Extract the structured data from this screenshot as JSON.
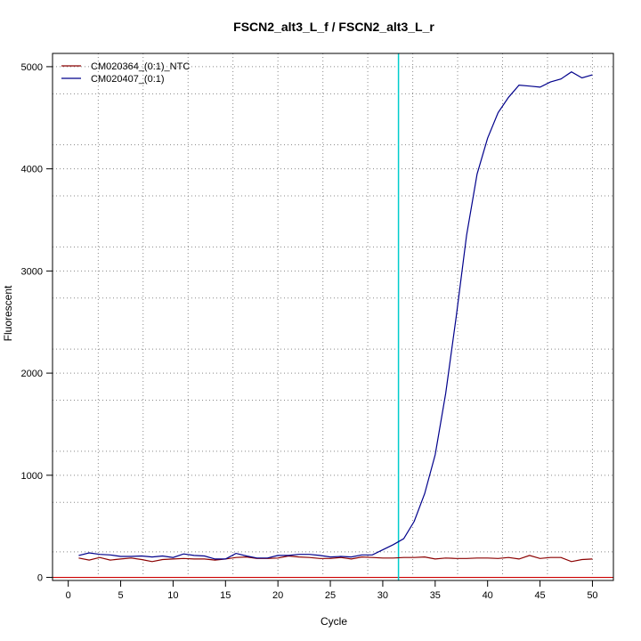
{
  "chart_data": {
    "type": "line",
    "title": "FSCN2_alt3_L_f / FSCN2_alt3_L_r",
    "xlabel": "Cycle",
    "ylabel": "Fluorescent",
    "xlim": [
      -1.5,
      52
    ],
    "ylim": [
      -30,
      5130
    ],
    "x_ticks": [
      0,
      5,
      10,
      15,
      20,
      25,
      30,
      35,
      40,
      45,
      50
    ],
    "x_tick_labels": [
      "0",
      "5",
      "10",
      "15",
      "20",
      "25",
      "30",
      "35",
      "40",
      "45",
      "50"
    ],
    "y_ticks": [
      0,
      1000,
      2000,
      3000,
      4000,
      5000
    ],
    "y_tick_labels": [
      "0",
      "1000",
      "2000",
      "3000",
      "4000",
      "5000"
    ],
    "x_grid": [
      2.86,
      7.14,
      11.43,
      15.71,
      20,
      24.29,
      28.57,
      32.86,
      37.14,
      41.43,
      45.71,
      50
    ],
    "y_grid": [
      0,
      250,
      735,
      1000,
      1235,
      1735,
      2000,
      2235,
      2735,
      3000,
      3235,
      3735,
      4000,
      4235,
      4735,
      5000
    ],
    "threshold_x": 31.5,
    "threshold_color": "#00cccc",
    "baseline_color": "#cc0000",
    "legend_position": "top-left",
    "x": [
      1,
      2,
      3,
      4,
      5,
      6,
      7,
      8,
      9,
      10,
      11,
      12,
      13,
      14,
      15,
      16,
      17,
      18,
      19,
      20,
      21,
      22,
      23,
      24,
      25,
      26,
      27,
      28,
      29,
      30,
      31,
      32,
      33,
      34,
      35,
      36,
      37,
      38,
      39,
      40,
      41,
      42,
      43,
      44,
      45,
      46,
      47,
      48,
      49,
      50
    ],
    "series": [
      {
        "name": "CM020364_(0:1)_NTC",
        "color": "#8b0000",
        "values": [
          190,
          170,
          195,
          170,
          180,
          190,
          175,
          155,
          175,
          180,
          185,
          180,
          180,
          170,
          180,
          195,
          200,
          185,
          185,
          190,
          210,
          200,
          195,
          185,
          185,
          195,
          180,
          200,
          195,
          190,
          190,
          195,
          195,
          200,
          180,
          190,
          185,
          185,
          190,
          190,
          185,
          195,
          180,
          215,
          185,
          195,
          195,
          155,
          175,
          180
        ]
      },
      {
        "name": "CM020407_(0:1)",
        "color": "#00008b",
        "values": [
          215,
          240,
          225,
          220,
          205,
          205,
          210,
          200,
          210,
          195,
          230,
          215,
          210,
          180,
          180,
          235,
          210,
          190,
          190,
          215,
          215,
          225,
          225,
          215,
          200,
          205,
          200,
          220,
          220,
          270,
          320,
          380,
          550,
          820,
          1200,
          1800,
          2550,
          3350,
          3950,
          4300,
          4550,
          4700,
          4820,
          4810,
          4800,
          4850,
          4880,
          4950,
          4890,
          4920
        ]
      }
    ]
  }
}
